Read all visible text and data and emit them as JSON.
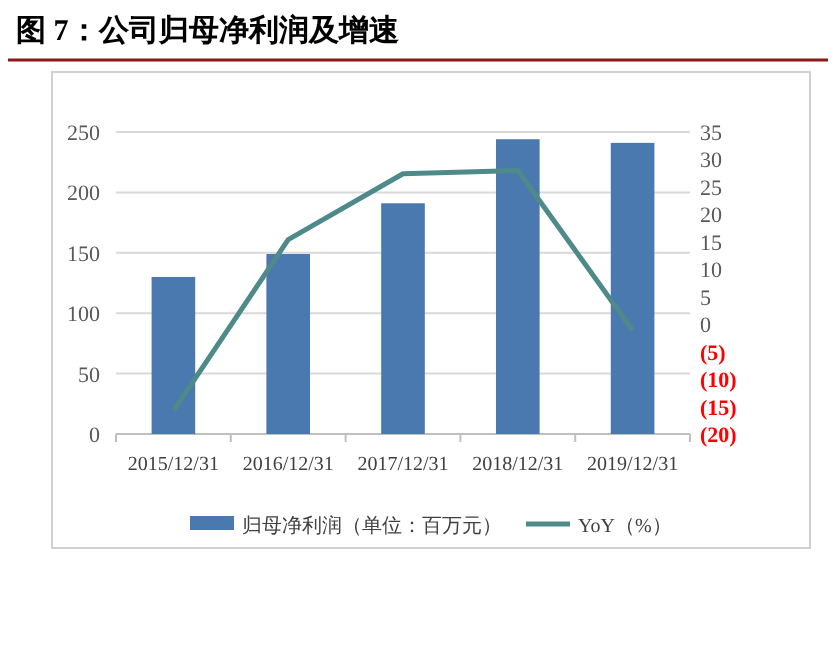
{
  "chart_data": {
    "type": "bar",
    "title": "图 7：公司归母净利润及增速",
    "categories": [
      "2015/12/31",
      "2016/12/31",
      "2017/12/31",
      "2018/12/31",
      "2019/12/31"
    ],
    "series": [
      {
        "name": "归母净利润（单位：百万元）",
        "color": "#4a79b0",
        "values": [
          130,
          149,
          191,
          244,
          241
        ]
      },
      {
        "name": "YoY（%）",
        "type": "line",
        "axis": "y2",
        "color": "#4f8a8b",
        "values": [
          -15.8,
          15.4,
          27.4,
          28.0,
          -1.1
        ]
      }
    ],
    "ylim": [
      0,
      250
    ],
    "yticks": [
      0,
      50,
      100,
      150,
      200,
      250
    ],
    "y2lim": [
      -20,
      35
    ],
    "y2ticks": [
      {
        "value": -20,
        "label": "(20)"
      },
      {
        "value": -15,
        "label": "(15)"
      },
      {
        "value": -10,
        "label": "(10)"
      },
      {
        "value": -5,
        "label": "(5)"
      },
      0,
      5,
      10,
      15,
      20,
      25,
      30,
      35
    ],
    "grid": "y",
    "legend": "bottom",
    "marker": "none",
    "line_style": "solid"
  }
}
